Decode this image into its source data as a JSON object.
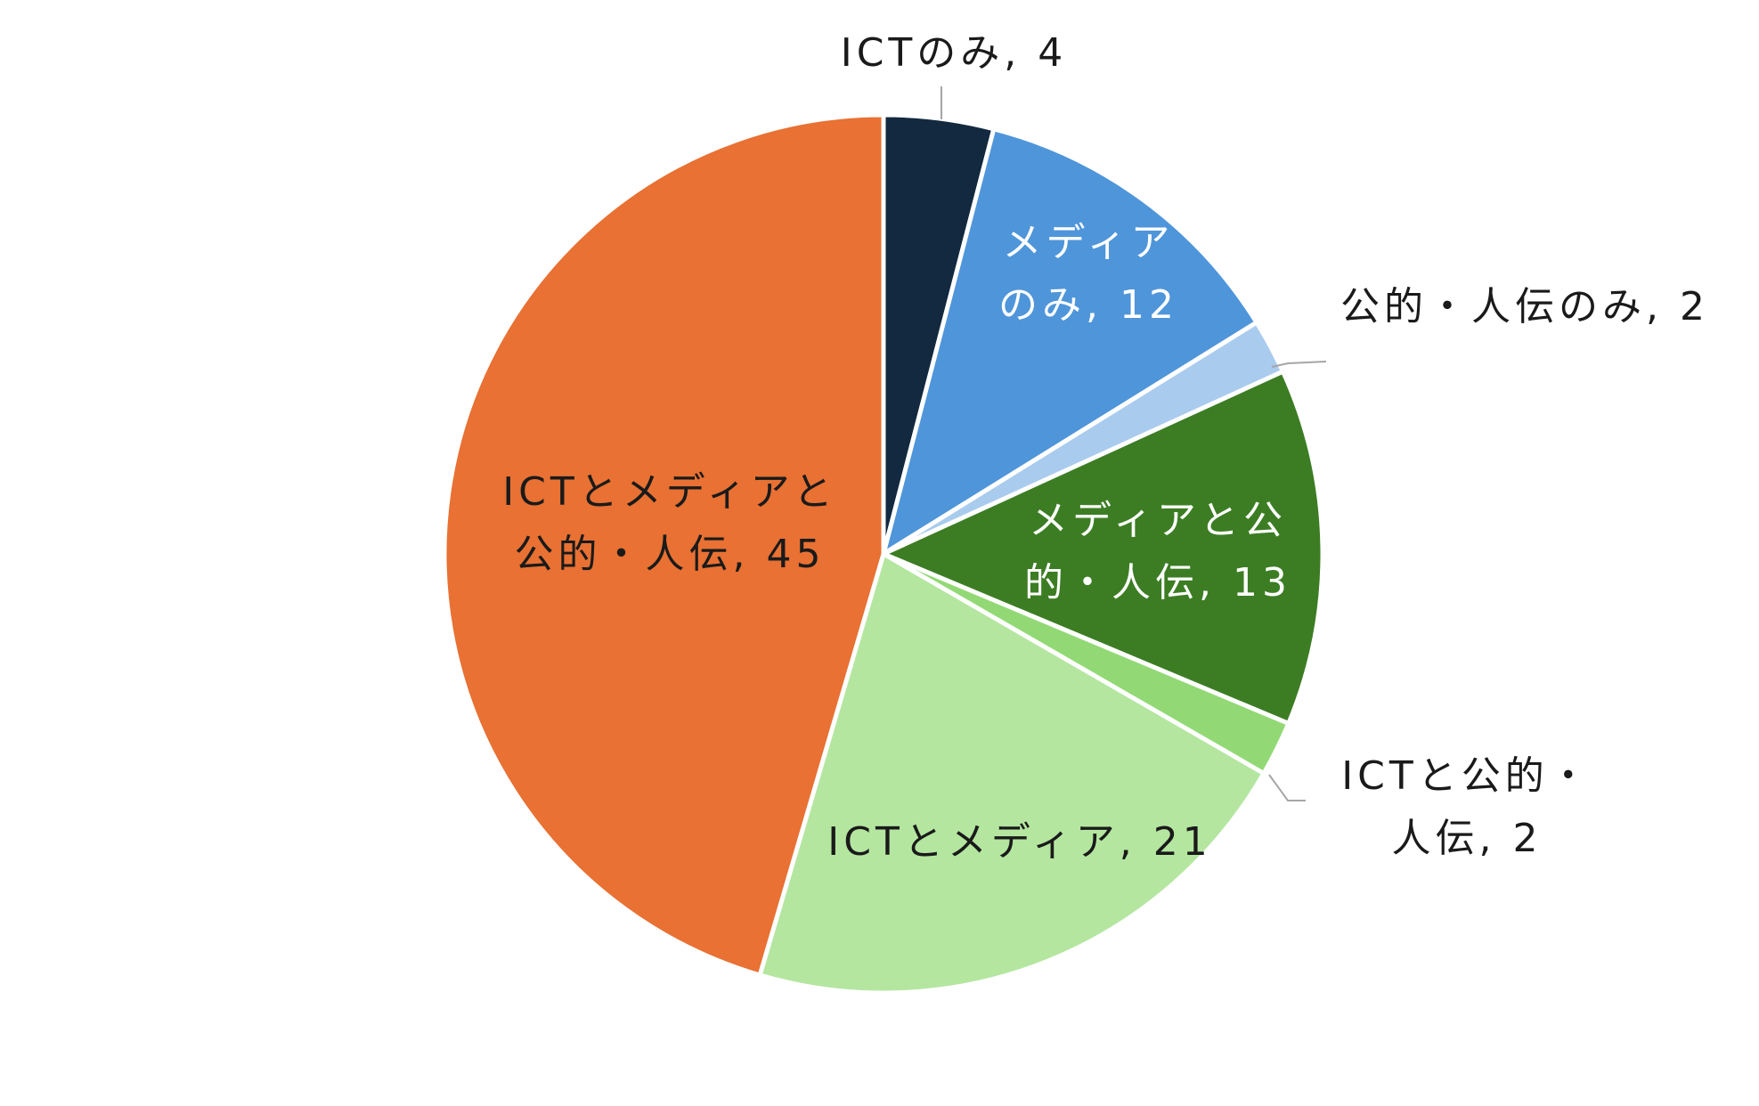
{
  "chart_data": {
    "type": "pie",
    "title": "",
    "total": 99,
    "slices": [
      {
        "name": "ICTのみ",
        "value": 4,
        "label_lines": [
          "ICTのみ, 4"
        ],
        "color": "#12293f",
        "label_color": "dark",
        "outside": true
      },
      {
        "name": "メディアのみ",
        "value": 12,
        "label_lines": [
          "メディア",
          "のみ, 12"
        ],
        "color": "#4f95da",
        "label_color": "light",
        "outside": false
      },
      {
        "name": "公的・人伝のみ",
        "value": 2,
        "label_lines": [
          "公的・人伝のみ, 2"
        ],
        "color": "#a9cbee",
        "label_color": "dark",
        "outside": true
      },
      {
        "name": "メディアと公的・人伝",
        "value": 13,
        "label_lines": [
          "メディアと公",
          "的・人伝, 13"
        ],
        "color": "#3c7d24",
        "label_color": "light",
        "outside": false
      },
      {
        "name": "ICTと公的・人伝",
        "value": 2,
        "label_lines": [
          "ICTと公的・",
          "人伝, 2"
        ],
        "color": "#92d975",
        "label_color": "dark",
        "outside": true
      },
      {
        "name": "ICTとメディア",
        "value": 21,
        "label_lines": [
          "ICTとメディア, 21"
        ],
        "color": "#b4e6a0",
        "label_color": "dark",
        "outside": false
      },
      {
        "name": "ICTとメディアと公的・人伝",
        "value": 45,
        "label_lines": [
          "ICTとメディアと",
          "公的・人伝, 45"
        ],
        "color": "#e87133",
        "label_color": "dark",
        "outside": false
      }
    ]
  }
}
